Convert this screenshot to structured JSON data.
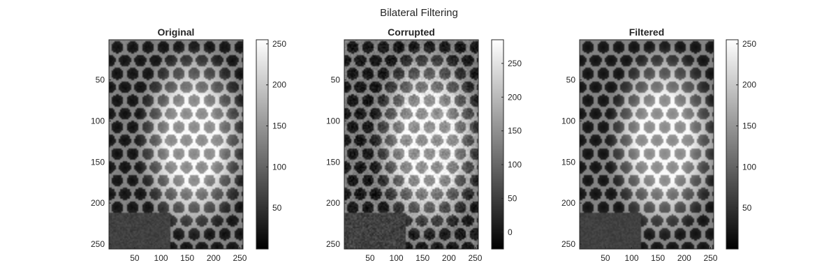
{
  "figure_title": "Bilateral Filtering",
  "chart_data": [
    {
      "type": "heatmap",
      "title": "Original",
      "colormap": "gray",
      "image_size": [
        256,
        256
      ],
      "xlim": [
        1,
        256
      ],
      "ylim": [
        1,
        256
      ],
      "x_ticks": [
        50,
        100,
        150,
        200,
        250
      ],
      "y_ticks": [
        50,
        100,
        150,
        200,
        250
      ],
      "y_reversed": true,
      "colorbar": {
        "range": [
          0,
          255
        ],
        "ticks": [
          50,
          100,
          150,
          200,
          250
        ]
      },
      "noise": 0
    },
    {
      "type": "heatmap",
      "title": "Corrupted",
      "colormap": "gray",
      "image_size": [
        256,
        256
      ],
      "xlim": [
        1,
        256
      ],
      "ylim": [
        1,
        256
      ],
      "x_ticks": [
        50,
        100,
        150,
        200,
        250
      ],
      "y_ticks": [
        50,
        100,
        150,
        200,
        250
      ],
      "y_reversed": true,
      "colorbar": {
        "range": [
          -25,
          285
        ],
        "ticks": [
          0,
          50,
          100,
          150,
          200,
          250
        ]
      },
      "noise": 18
    },
    {
      "type": "heatmap",
      "title": "Filtered",
      "colormap": "gray",
      "image_size": [
        256,
        256
      ],
      "xlim": [
        1,
        256
      ],
      "ylim": [
        1,
        256
      ],
      "x_ticks": [
        50,
        100,
        150,
        200,
        250
      ],
      "y_ticks": [
        50,
        100,
        150,
        200,
        250
      ],
      "y_reversed": true,
      "colorbar": {
        "range": [
          0,
          255
        ],
        "ticks": [
          50,
          100,
          150,
          200,
          250
        ]
      },
      "noise": 0
    }
  ]
}
